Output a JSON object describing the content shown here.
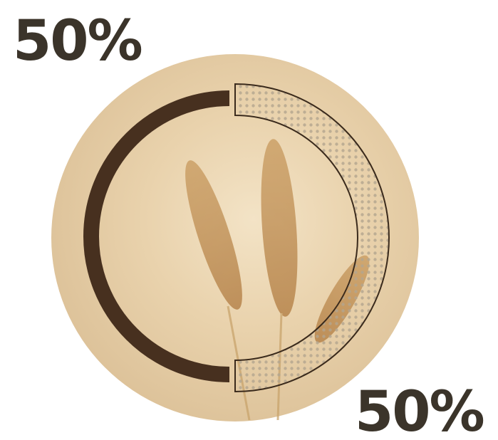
{
  "chart_data": {
    "type": "pie",
    "values": [
      50,
      50
    ],
    "value_labels": [
      "50%",
      "50%"
    ],
    "colors": [
      "#47301f",
      "#3a2a1c"
    ]
  }
}
